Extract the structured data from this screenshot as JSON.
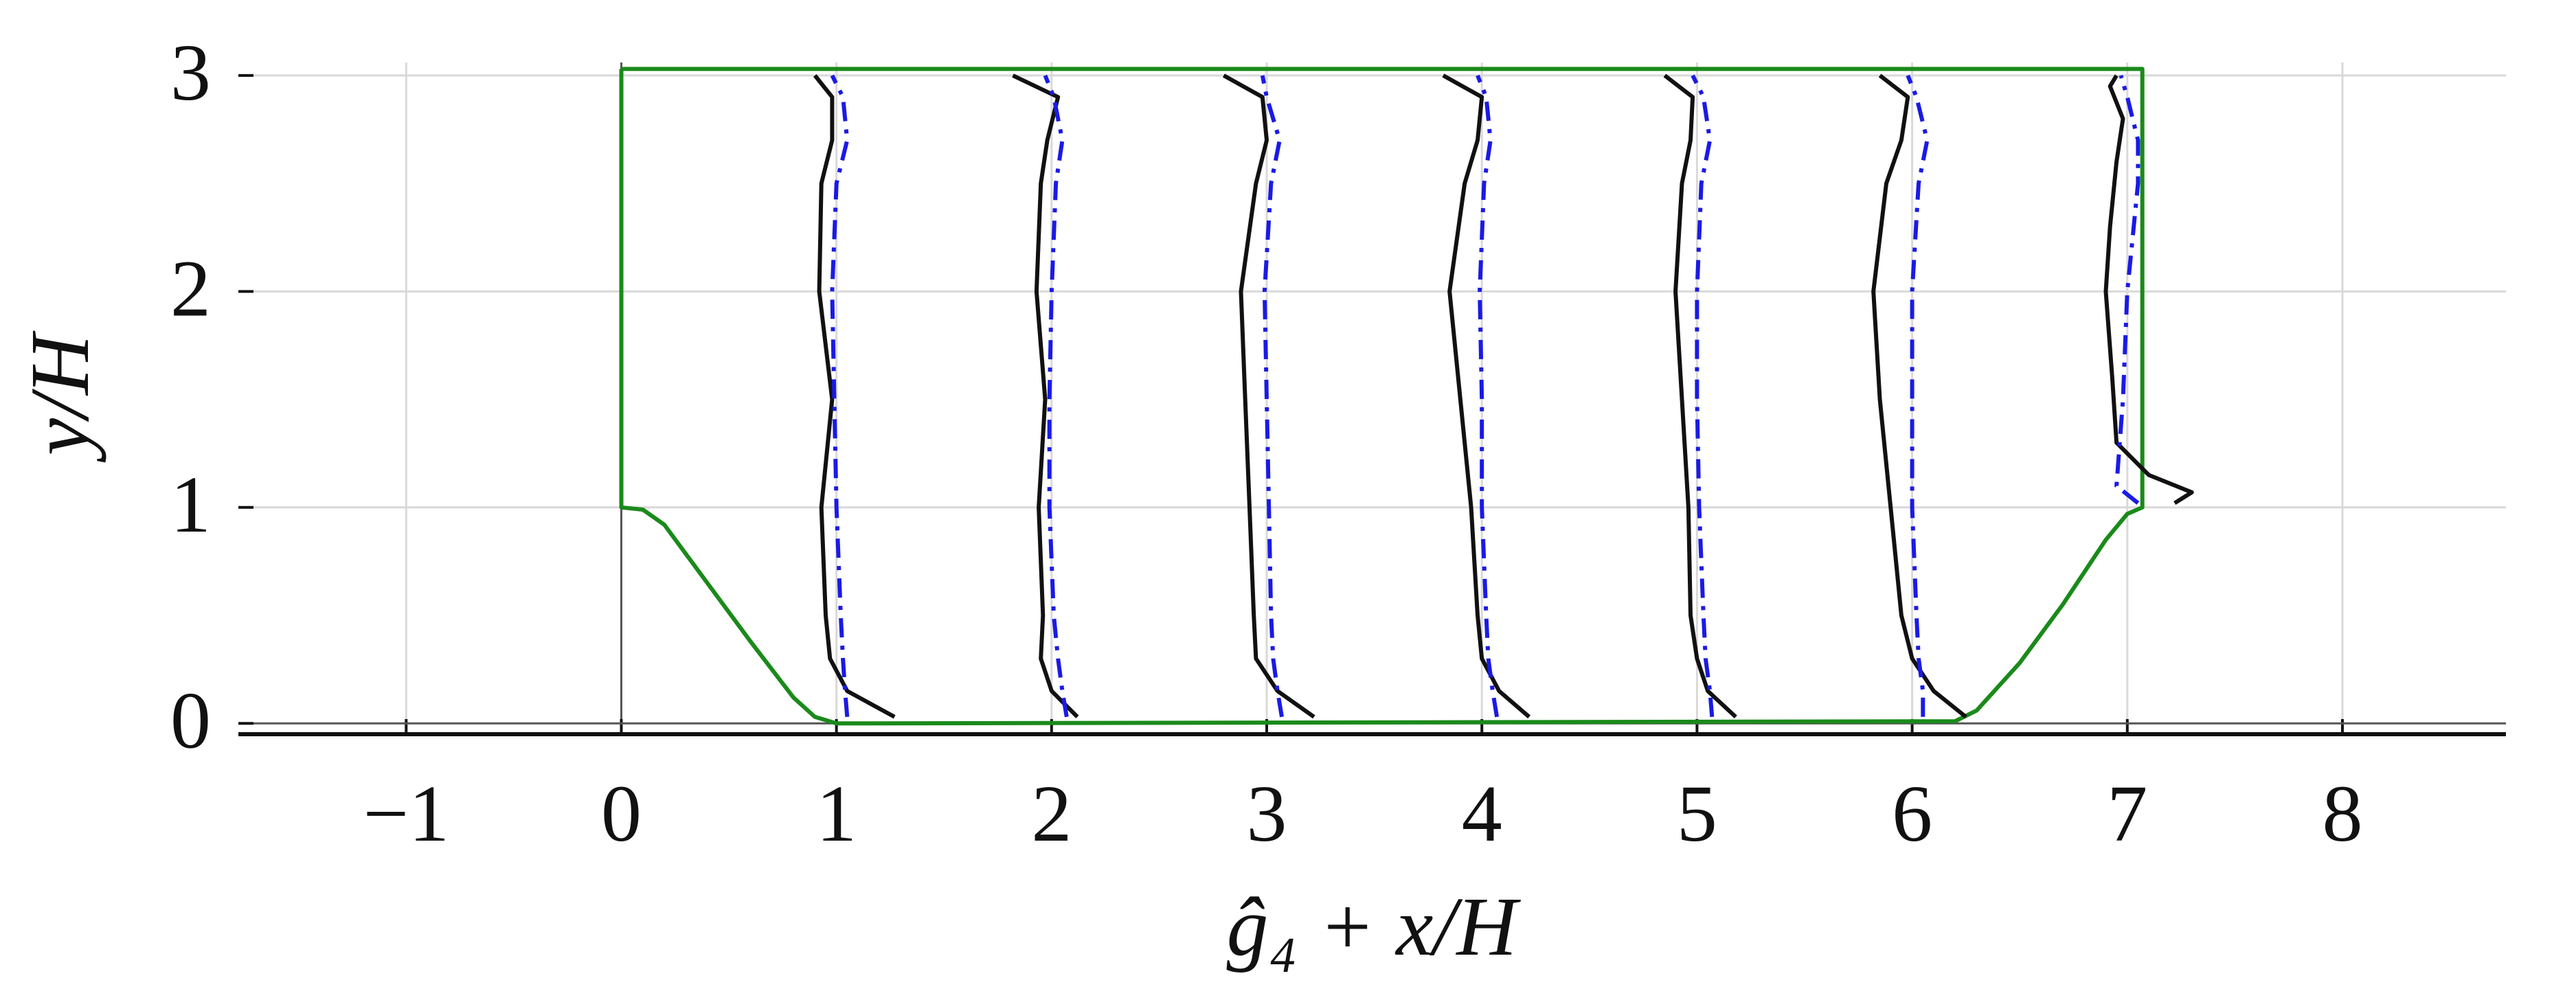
{
  "chart_data": {
    "type": "line",
    "xlabel": "ĝ₄ + x/H",
    "ylabel": "y/H",
    "xlim": [
      -1.78,
      8.76
    ],
    "ylim": [
      -0.05,
      3.06
    ],
    "xticks": [
      {
        "value": -1,
        "label": "−1"
      },
      0,
      1,
      2,
      3,
      4,
      5,
      6,
      7,
      8
    ],
    "yticks": [
      0,
      1,
      2,
      3
    ],
    "grid": true,
    "series": [
      {
        "color": "#1a8a1a",
        "linestyle": "solid",
        "x": [
          0,
          0,
          0.1,
          0.2,
          0.4,
          0.6,
          0.8,
          0.9,
          1.0,
          6.2,
          6.3,
          6.5,
          6.7,
          6.9,
          7.0,
          7.07,
          7.07,
          0
        ],
        "values": [
          3.03,
          1.0,
          0.99,
          0.92,
          0.65,
          0.38,
          0.12,
          0.03,
          0,
          0.01,
          0.06,
          0.28,
          0.55,
          0.85,
          0.97,
          1.0,
          3.03,
          3.03
        ]
      },
      {
        "color": "#111111",
        "linestyle": "solid",
        "x": [
          1.27,
          1.05,
          0.97,
          0.95,
          0.93,
          0.98,
          0.92,
          0.93,
          0.98,
          0.98,
          0.9
        ],
        "values": [
          0.03,
          0.15,
          0.3,
          0.5,
          1.0,
          1.5,
          2.0,
          2.5,
          2.7,
          2.9,
          3.0
        ]
      },
      {
        "color": "#111111",
        "linestyle": "solid",
        "x": [
          2.12,
          2.0,
          1.95,
          1.96,
          1.94,
          1.97,
          1.93,
          1.95,
          1.98,
          2.03,
          1.82
        ],
        "values": [
          0.03,
          0.15,
          0.3,
          0.5,
          1.0,
          1.5,
          2.0,
          2.5,
          2.7,
          2.9,
          3.0
        ]
      },
      {
        "color": "#111111",
        "linestyle": "solid",
        "x": [
          3.22,
          3.05,
          2.95,
          2.94,
          2.92,
          2.9,
          2.88,
          2.95,
          3.0,
          2.98,
          2.8
        ],
        "values": [
          0.03,
          0.15,
          0.3,
          0.5,
          1.0,
          1.5,
          2.0,
          2.5,
          2.7,
          2.9,
          3.0
        ]
      },
      {
        "color": "#111111",
        "linestyle": "solid",
        "x": [
          4.22,
          4.08,
          4.0,
          3.98,
          3.95,
          3.9,
          3.85,
          3.92,
          3.98,
          4.0,
          3.82
        ],
        "values": [
          0.03,
          0.15,
          0.3,
          0.5,
          1.0,
          1.5,
          2.0,
          2.5,
          2.7,
          2.9,
          3.0
        ]
      },
      {
        "color": "#111111",
        "linestyle": "solid",
        "x": [
          5.18,
          5.05,
          5.0,
          4.97,
          4.96,
          4.93,
          4.9,
          4.93,
          4.97,
          4.98,
          4.85
        ],
        "values": [
          0.03,
          0.15,
          0.3,
          0.5,
          1.0,
          1.5,
          2.0,
          2.5,
          2.7,
          2.9,
          3.0
        ]
      },
      {
        "color": "#111111",
        "linestyle": "solid",
        "x": [
          6.25,
          6.1,
          6.0,
          5.95,
          5.9,
          5.85,
          5.82,
          5.88,
          5.95,
          5.98,
          5.85
        ],
        "values": [
          0.03,
          0.15,
          0.3,
          0.5,
          1.0,
          1.5,
          2.0,
          2.5,
          2.7,
          2.9,
          3.0
        ]
      },
      {
        "color": "#111111",
        "linestyle": "solid",
        "x": [
          7.22,
          7.3,
          7.1,
          6.95,
          6.93,
          6.9,
          6.92,
          6.95,
          6.98,
          6.92,
          6.95
        ],
        "values": [
          1.02,
          1.07,
          1.15,
          1.3,
          1.6,
          2.0,
          2.3,
          2.6,
          2.8,
          2.95,
          3.0
        ]
      },
      {
        "color": "#1a1ae6",
        "linestyle": "dashdot",
        "x": [
          1.05,
          1.04,
          1.03,
          1.02,
          1.0,
          0.99,
          0.98,
          1.0,
          1.05,
          1.03,
          0.98
        ],
        "values": [
          0.03,
          0.15,
          0.3,
          0.5,
          1.0,
          1.5,
          2.0,
          2.5,
          2.7,
          2.9,
          3.0
        ]
      },
      {
        "color": "#1a1ae6",
        "linestyle": "dashdot",
        "x": [
          2.07,
          2.05,
          2.03,
          2.01,
          1.99,
          1.99,
          2.0,
          2.02,
          2.05,
          2.01,
          1.97
        ],
        "values": [
          0.03,
          0.15,
          0.3,
          0.5,
          1.0,
          1.5,
          2.0,
          2.5,
          2.7,
          2.9,
          3.0
        ]
      },
      {
        "color": "#1a1ae6",
        "linestyle": "dashdot",
        "x": [
          3.07,
          3.05,
          3.03,
          3.02,
          3.01,
          3.0,
          2.99,
          3.02,
          3.06,
          3.0,
          2.98
        ],
        "values": [
          0.03,
          0.15,
          0.3,
          0.5,
          1.0,
          1.5,
          2.0,
          2.5,
          2.7,
          2.9,
          3.0
        ]
      },
      {
        "color": "#1a1ae6",
        "linestyle": "dashdot",
        "x": [
          4.07,
          4.05,
          4.03,
          4.02,
          4.0,
          4.0,
          3.99,
          4.01,
          4.04,
          4.02,
          3.98
        ],
        "values": [
          0.03,
          0.15,
          0.3,
          0.5,
          1.0,
          1.5,
          2.0,
          2.5,
          2.7,
          2.9,
          3.0
        ]
      },
      {
        "color": "#1a1ae6",
        "linestyle": "dashdot",
        "x": [
          5.07,
          5.06,
          5.04,
          5.03,
          5.01,
          5.0,
          5.0,
          5.02,
          5.06,
          5.03,
          4.98
        ],
        "values": [
          0.03,
          0.15,
          0.3,
          0.5,
          1.0,
          1.5,
          2.0,
          2.5,
          2.7,
          2.9,
          3.0
        ]
      },
      {
        "color": "#1a1ae6",
        "linestyle": "dashdot",
        "x": [
          6.05,
          6.05,
          6.03,
          6.02,
          6.0,
          6.0,
          6.0,
          6.03,
          6.07,
          6.02,
          5.98
        ],
        "values": [
          0.03,
          0.15,
          0.3,
          0.5,
          1.0,
          1.5,
          2.0,
          2.5,
          2.7,
          2.9,
          3.0
        ]
      },
      {
        "color": "#1a1ae6",
        "linestyle": "dashdot",
        "x": [
          7.05,
          6.95,
          6.98,
          7.0,
          7.05,
          7.05,
          7.0,
          6.97
        ],
        "values": [
          1.02,
          1.1,
          1.5,
          2.0,
          2.5,
          2.7,
          2.9,
          3.0
        ]
      }
    ]
  }
}
